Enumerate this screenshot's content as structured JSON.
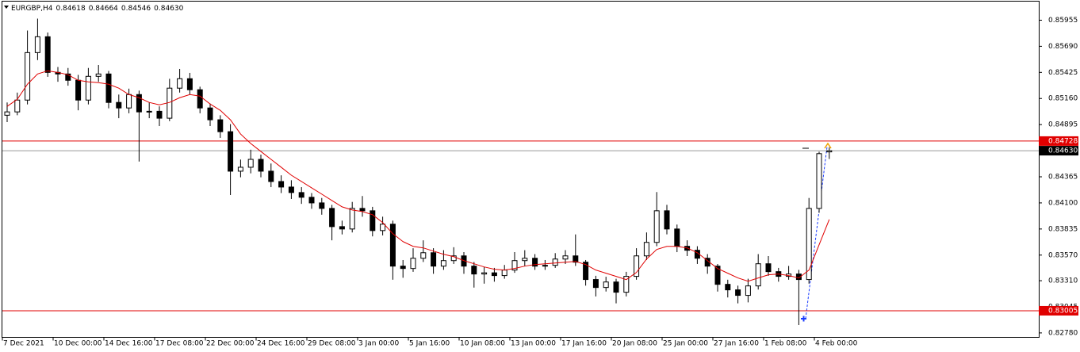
{
  "chart_data": {
    "type": "candlestick",
    "header": {
      "symbol": "EURGBP,H4",
      "values": [
        0.84618,
        0.84664,
        0.84546,
        {
          "value": 0.8463,
          "label": "0.84630"
        }
      ]
    },
    "categories": [
      "7 Dec 2021",
      null,
      null,
      null,
      null,
      "10 Dec 00:00",
      null,
      null,
      null,
      null,
      "14 Dec 16:00",
      null,
      null,
      null,
      null,
      "17 Dec 08:00",
      null,
      null,
      null,
      null,
      "22 Dec 00:00",
      null,
      null,
      null,
      null,
      "24 Dec 16:00",
      null,
      null,
      null,
      null,
      "29 Dec 08:00",
      null,
      null,
      null,
      null,
      "3 Jan 00:00",
      null,
      null,
      null,
      null,
      "5 Jan 16:00",
      null,
      null,
      null,
      null,
      "10 Jan 08:00",
      null,
      null,
      null,
      null,
      "13 Jan 00:00",
      null,
      null,
      null,
      null,
      "17 Jan 16:00",
      null,
      null,
      null,
      null,
      "20 Jan 08:00",
      null,
      null,
      null,
      null,
      "25 Jan 00:00",
      null,
      null,
      null,
      null,
      "27 Jan 16:00",
      null,
      null,
      null,
      null,
      "1 Feb 08:00",
      null,
      null,
      null,
      null,
      "4 Feb 00:00",
      null
    ],
    "candles": {
      "open": [
        0.8499,
        0.85024,
        0.85144,
        0.85626,
        0.85787,
        0.85425,
        0.85409,
        0.85345,
        0.85144,
        0.85385,
        0.85409,
        0.8512,
        0.85064,
        0.852,
        0.85024,
        0.8503,
        0.8496,
        0.85265,
        0.85361,
        0.85249,
        0.85064,
        0.84944,
        0.84823,
        0.84422,
        0.84462,
        0.84542,
        0.84422,
        0.84317,
        0.84261,
        0.84205,
        0.84157,
        0.841,
        0.84044,
        0.83859,
        0.83835,
        0.84044,
        0.8402,
        0.83819,
        0.83884,
        0.83458,
        0.83434,
        0.83538,
        0.83594,
        0.83458,
        0.83514,
        0.83562,
        0.83458,
        0.83378,
        0.8339,
        0.83362,
        0.83418,
        0.83514,
        0.83538,
        0.83458,
        0.83466,
        0.8353,
        0.83562,
        0.83498,
        0.83322,
        0.83241,
        0.83297,
        0.83193,
        0.83354,
        0.83562,
        0.83699,
        0.8402,
        0.83835,
        0.83659,
        0.83619,
        0.83538,
        0.83458,
        0.83273,
        0.83217,
        0.83161,
        0.83257,
        0.83482,
        0.83402,
        0.83354,
        0.83378,
        0.83322,
        0.84044,
        0.84618
      ],
      "high": [
        0.8512,
        0.8522,
        0.8585,
        0.85971,
        0.8583,
        0.8548,
        0.8547,
        0.854,
        0.8547,
        0.855,
        0.8544,
        0.852,
        0.8526,
        0.8524,
        0.8512,
        0.8508,
        0.8536,
        0.8546,
        0.8542,
        0.8528,
        0.8511,
        0.8499,
        0.849,
        0.8454,
        0.8464,
        0.8459,
        0.845,
        0.8438,
        0.8433,
        0.8426,
        0.842,
        0.8415,
        0.8408,
        0.8392,
        0.8411,
        0.8417,
        0.8406,
        0.8396,
        0.8392,
        0.8352,
        0.8364,
        0.8372,
        0.8364,
        0.8362,
        0.8365,
        0.836,
        0.835,
        0.8345,
        0.8344,
        0.8347,
        0.836,
        0.8362,
        0.8358,
        0.8352,
        0.8359,
        0.8362,
        0.8378,
        0.8352,
        0.8336,
        0.8335,
        0.8333,
        0.834,
        0.8364,
        0.838,
        0.8421,
        0.8408,
        0.8388,
        0.8372,
        0.8366,
        0.8358,
        0.8348,
        0.8332,
        0.8326,
        0.8333,
        0.8358,
        0.8356,
        0.8344,
        0.8346,
        0.8342,
        0.8415,
        0.8462,
        0.84664
      ],
      "low": [
        0.8492,
        0.8499,
        0.851,
        0.8555,
        0.8538,
        0.8533,
        0.8529,
        0.8504,
        0.851,
        0.8533,
        0.8506,
        0.8496,
        0.8501,
        0.8452,
        0.8496,
        0.8488,
        0.8493,
        0.8522,
        0.852,
        0.8501,
        0.8488,
        0.8476,
        0.8418,
        0.8436,
        0.844,
        0.8436,
        0.8426,
        0.842,
        0.8414,
        0.8409,
        0.8404,
        0.8398,
        0.8372,
        0.8378,
        0.838,
        0.8396,
        0.8376,
        0.8377,
        0.8332,
        0.8334,
        0.834,
        0.835,
        0.8338,
        0.8342,
        0.8348,
        0.8338,
        0.8324,
        0.8328,
        0.833,
        0.8333,
        0.8339,
        0.8346,
        0.8342,
        0.8342,
        0.8344,
        0.8348,
        0.8346,
        0.8326,
        0.8315,
        0.832,
        0.8308,
        0.8315,
        0.8332,
        0.8352,
        0.8366,
        0.8378,
        0.836,
        0.8356,
        0.8348,
        0.8338,
        0.832,
        0.8314,
        0.8308,
        0.8309,
        0.8322,
        0.8336,
        0.833,
        0.8332,
        0.8286,
        0.8328,
        0.84,
        0.84546
      ],
      "close": [
        0.85024,
        0.85144,
        0.85626,
        0.85787,
        0.85425,
        0.85409,
        0.85345,
        0.85144,
        0.85385,
        0.85409,
        0.8512,
        0.85064,
        0.852,
        0.85024,
        0.8503,
        0.8496,
        0.85265,
        0.85361,
        0.85249,
        0.85064,
        0.84944,
        0.84823,
        0.84422,
        0.84462,
        0.84542,
        0.84422,
        0.84317,
        0.84261,
        0.84205,
        0.84157,
        0.841,
        0.84044,
        0.83859,
        0.83835,
        0.84044,
        0.8402,
        0.83819,
        0.83884,
        0.83458,
        0.83434,
        0.83538,
        0.83594,
        0.83458,
        0.83514,
        0.83562,
        0.83458,
        0.83378,
        0.8339,
        0.83362,
        0.83418,
        0.83514,
        0.83538,
        0.83458,
        0.83466,
        0.8353,
        0.83562,
        0.83498,
        0.83322,
        0.83241,
        0.83297,
        0.83193,
        0.83354,
        0.83562,
        0.83699,
        0.8402,
        0.83835,
        0.83659,
        0.83619,
        0.83538,
        0.83458,
        0.83273,
        0.83217,
        0.83161,
        0.83257,
        0.83482,
        0.83402,
        0.83354,
        0.83378,
        0.83322,
        0.84044,
        0.846,
        0.8463
      ]
    },
    "line": {
      "color": "#e00000",
      "values": [
        0.8508,
        0.85152,
        0.85305,
        0.85409,
        0.85441,
        0.85425,
        0.85401,
        0.85345,
        0.85329,
        0.85321,
        0.85305,
        0.85265,
        0.852,
        0.85168,
        0.8512,
        0.85096,
        0.8512,
        0.85168,
        0.852,
        0.85184,
        0.85104,
        0.8504,
        0.84944,
        0.84799,
        0.84703,
        0.84622,
        0.84542,
        0.84462,
        0.84381,
        0.84317,
        0.84253,
        0.84189,
        0.84124,
        0.8406,
        0.84028,
        0.84012,
        0.8398,
        0.839,
        0.83787,
        0.83707,
        0.83659,
        0.83643,
        0.83611,
        0.83578,
        0.83554,
        0.83514,
        0.83482,
        0.8345,
        0.83426,
        0.83418,
        0.83434,
        0.83458,
        0.83474,
        0.83482,
        0.8349,
        0.83498,
        0.83506,
        0.83474,
        0.83418,
        0.83386,
        0.83354,
        0.83321,
        0.83394,
        0.8353,
        0.83627,
        0.83659,
        0.83659,
        0.83643,
        0.83594,
        0.83514,
        0.83434,
        0.83386,
        0.83338,
        0.83305,
        0.83338,
        0.8337,
        0.83378,
        0.83362,
        0.83338,
        0.83418,
        0.83675,
        0.83932
      ]
    },
    "levels": [
      {
        "value": 0.84728,
        "color": "#e00000"
      },
      {
        "value": 0.83005,
        "color": "#e00000"
      }
    ],
    "current": {
      "value": 0.8463,
      "label": "0.84630",
      "color": "#000000"
    },
    "ylim": [
      0.82735,
      0.86148
    ],
    "yticks": [
      0.85955,
      {
        "value": 0.8569,
        "label": "0.85690"
      },
      0.85425,
      {
        "value": 0.8516,
        "label": "0.85160"
      },
      0.84895,
      0.84365,
      {
        "value": 0.841,
        "label": "0.84100"
      },
      0.83835,
      {
        "value": 0.8357,
        "label": "0.83570"
      },
      {
        "value": 0.8331,
        "label": "0.83310"
      },
      0.83045,
      {
        "value": 0.8278,
        "label": "0.82780"
      }
    ]
  }
}
